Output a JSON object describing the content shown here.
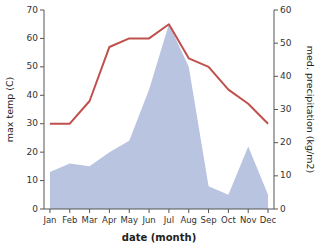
{
  "chart_data": {
    "type": "line",
    "xlabel": "date (month)",
    "ylabel": "max temp (C)",
    "y2label": "med. precipitation (kg/m2)",
    "categories": [
      "Jan",
      "Feb",
      "Mar",
      "Apr",
      "May",
      "Jun",
      "Jul",
      "Aug",
      "Sep",
      "Oct",
      "Nov",
      "Dec"
    ],
    "series": [
      {
        "type": "area",
        "color": "#b8c4e0",
        "values": [
          13,
          16,
          15,
          20,
          24,
          42,
          65,
          50,
          8,
          5,
          22,
          5
        ]
      },
      {
        "type": "line",
        "color": "#c0504d",
        "values": [
          30,
          30,
          38,
          57,
          60,
          60,
          65,
          53,
          50,
          42,
          37,
          30
        ]
      }
    ],
    "ylim": [
      0,
      70
    ],
    "yticks": [
      0,
      10,
      20,
      30,
      40,
      50,
      60,
      70
    ],
    "y2lim": [
      0,
      60
    ],
    "y2ticks": [
      0,
      10,
      20,
      30,
      40,
      50,
      60
    ],
    "grid": false
  }
}
